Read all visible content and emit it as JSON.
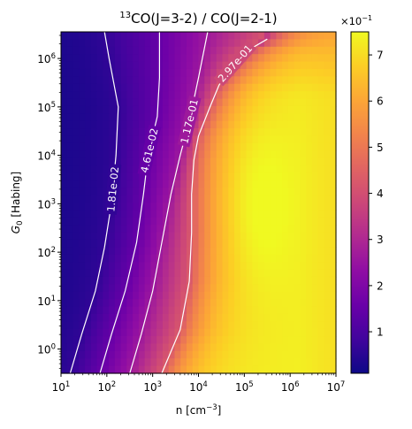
{
  "chart_data": {
    "type": "heatmap",
    "title_prefix_sup": "13",
    "title_rest": "CO(J=3-2) / CO(J=2-1)",
    "xlabel_main": "n [cm",
    "xlabel_sup": "−3",
    "xlabel_end": "]",
    "ylabel_main": "G",
    "ylabel_sub": "0",
    "ylabel_end": " [Habing]",
    "x_scale": "log",
    "y_scale": "log",
    "xlim_log10": [
      1,
      7
    ],
    "ylim_log10": [
      -0.5,
      6.55
    ],
    "x_ticks": [
      {
        "exp": 1,
        "base": "10",
        "sup": "1"
      },
      {
        "exp": 2,
        "base": "10",
        "sup": "2"
      },
      {
        "exp": 3,
        "base": "10",
        "sup": "3"
      },
      {
        "exp": 4,
        "base": "10",
        "sup": "4"
      },
      {
        "exp": 5,
        "base": "10",
        "sup": "5"
      },
      {
        "exp": 6,
        "base": "10",
        "sup": "6"
      },
      {
        "exp": 7,
        "base": "10",
        "sup": "7"
      }
    ],
    "y_ticks": [
      {
        "exp": 0,
        "base": "10",
        "sup": "0"
      },
      {
        "exp": 1,
        "base": "10",
        "sup": "1"
      },
      {
        "exp": 2,
        "base": "10",
        "sup": "2"
      },
      {
        "exp": 3,
        "base": "10",
        "sup": "3"
      },
      {
        "exp": 4,
        "base": "10",
        "sup": "4"
      },
      {
        "exp": 5,
        "base": "10",
        "sup": "5"
      },
      {
        "exp": 6,
        "base": "10",
        "sup": "6"
      }
    ],
    "colormap": "plasma",
    "colorbar": {
      "multiplier_base": "×10",
      "multiplier_sup": "−1",
      "range": [
        0.1,
        7.5
      ],
      "ticks": [
        "1",
        "2",
        "3",
        "4",
        "5",
        "6",
        "7"
      ]
    },
    "heatmap_summary": {
      "min_value": 0.1,
      "max_value": 7.5,
      "peak_location_log10": {
        "n": 5.3,
        "G0": 3.0
      }
    },
    "contours": [
      {
        "label": "1.81e-02",
        "path_log10": [
          [
            1.2,
            -0.5
          ],
          [
            1.45,
            0.3
          ],
          [
            1.75,
            1.2
          ],
          [
            1.95,
            2.1
          ],
          [
            2.1,
            3.0
          ],
          [
            2.2,
            4.0
          ],
          [
            2.25,
            5.0
          ],
          [
            2.05,
            6.0
          ],
          [
            1.95,
            6.55
          ]
        ]
      },
      {
        "label": "4.61e-02",
        "path_log10": [
          [
            1.85,
            -0.5
          ],
          [
            2.1,
            0.3
          ],
          [
            2.4,
            1.2
          ],
          [
            2.65,
            2.2
          ],
          [
            2.8,
            3.2
          ],
          [
            2.9,
            4.0
          ],
          [
            3.1,
            4.8
          ],
          [
            3.15,
            5.6
          ],
          [
            3.15,
            6.55
          ]
        ]
      },
      {
        "label": "1.17e-01",
        "path_log10": [
          [
            2.5,
            -0.5
          ],
          [
            2.75,
            0.3
          ],
          [
            3.0,
            1.2
          ],
          [
            3.2,
            2.2
          ],
          [
            3.4,
            3.2
          ],
          [
            3.6,
            4.0
          ],
          [
            3.8,
            4.7
          ],
          [
            4.0,
            5.6
          ],
          [
            4.2,
            6.55
          ]
        ]
      },
      {
        "label": "2.97e-01",
        "path_log10": [
          [
            3.2,
            -0.5
          ],
          [
            3.6,
            0.4
          ],
          [
            3.8,
            1.4
          ],
          [
            3.85,
            2.4
          ],
          [
            3.85,
            3.2
          ],
          [
            3.9,
            3.9
          ],
          [
            4.0,
            4.4
          ],
          [
            4.25,
            5.0
          ],
          [
            4.45,
            5.45
          ],
          [
            4.75,
            5.85
          ],
          [
            5.05,
            6.15
          ],
          [
            5.5,
            6.4
          ]
        ]
      }
    ]
  }
}
